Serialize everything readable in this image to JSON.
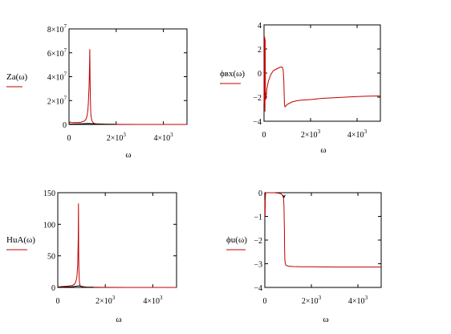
{
  "chart_data": [
    {
      "id": "za",
      "type": "line",
      "ylabel": "Za(ω)",
      "xlabel": "ω",
      "xlim": [
        0,
        5000
      ],
      "ylim": [
        0,
        80000000
      ],
      "yticks": [
        {
          "v": 0,
          "t": "0",
          "s": ""
        },
        {
          "v": 20000000,
          "t": "2×10",
          "s": "7"
        },
        {
          "v": 40000000,
          "t": "4×10",
          "s": "7"
        },
        {
          "v": 60000000,
          "t": "6×10",
          "s": "7"
        },
        {
          "v": 80000000,
          "t": "8×10",
          "s": "7"
        }
      ],
      "xticks": [
        {
          "v": 0,
          "t": "0",
          "s": ""
        },
        {
          "v": 2000,
          "t": "2×10",
          "s": "3"
        },
        {
          "v": 4000,
          "t": "4×10",
          "s": "3"
        }
      ],
      "series": [
        {
          "color": "#c00000",
          "x": [
            0,
            50,
            100,
            200,
            300,
            400,
            500,
            600,
            650,
            700,
            720,
            750,
            780,
            800,
            820,
            850,
            860,
            870,
            880,
            890,
            900,
            910,
            920,
            930,
            950,
            980,
            1000,
            1050,
            1100,
            1200,
            1300,
            1500,
            2000,
            3000,
            4000,
            5000
          ],
          "y": [
            1000000,
            2000000,
            1700000,
            1600000,
            1600000,
            1700000,
            1900000,
            2400000,
            2900000,
            3800000,
            4500000,
            6000000,
            9000000,
            12000000,
            18000000,
            32000000,
            40000000,
            50000000,
            63000000,
            40000000,
            27000000,
            18000000,
            12000000,
            8000000,
            5000000,
            3000000,
            2000000,
            1000000,
            600000,
            300000,
            200000,
            100000,
            50000,
            20000,
            10000,
            5000
          ]
        },
        {
          "color": "#000000",
          "x": [
            0,
            200,
            400,
            600,
            800,
            1000,
            1500,
            2000
          ],
          "y": [
            300000,
            400000,
            500000,
            600000,
            800000,
            600000,
            300000,
            100000
          ]
        }
      ]
    },
    {
      "id": "phi_bx",
      "type": "line",
      "ylabel": "ϕвх(ω)",
      "xlabel": "ω",
      "xlim": [
        0,
        5000
      ],
      "ylim": [
        -4,
        4
      ],
      "yticks": [
        {
          "v": -4,
          "t": "−4",
          "s": ""
        },
        {
          "v": -2,
          "t": "−2",
          "s": ""
        },
        {
          "v": 0,
          "t": "0",
          "s": ""
        },
        {
          "v": 2,
          "t": "2",
          "s": ""
        },
        {
          "v": 4,
          "t": "4",
          "s": ""
        }
      ],
      "xticks": [
        {
          "v": 0,
          "t": "0",
          "s": ""
        },
        {
          "v": 2000,
          "t": "2×10",
          "s": "3"
        },
        {
          "v": 4000,
          "t": "4×10",
          "s": "3"
        }
      ],
      "series": [
        {
          "color": "#c00000",
          "x": [
            0,
            10,
            20,
            30,
            40,
            50,
            60,
            70,
            80,
            100,
            120,
            150,
            200,
            300,
            400,
            500,
            600,
            700,
            780,
            820,
            850,
            870,
            880,
            900,
            950,
            1000,
            1100,
            1200,
            1400,
            1600,
            2000,
            2500,
            3000,
            3500,
            4000,
            4500,
            5000
          ],
          "y": [
            -2.5,
            3.1,
            -2.8,
            3.0,
            -3.2,
            2.8,
            -2.0,
            -1.6,
            -2.2,
            -1.8,
            -1.3,
            -1.0,
            -0.6,
            -0.1,
            0.2,
            0.3,
            0.4,
            0.5,
            0.5,
            0.3,
            -0.5,
            -2.0,
            -2.6,
            -2.8,
            -2.7,
            -2.6,
            -2.5,
            -2.4,
            -2.3,
            -2.25,
            -2.2,
            -2.1,
            -2.05,
            -2.0,
            -1.95,
            -1.92,
            -1.9
          ]
        }
      ]
    },
    {
      "id": "hua",
      "type": "line",
      "ylabel": "HuA(ω)",
      "xlabel": "ω",
      "xlim": [
        0,
        5000
      ],
      "ylim": [
        0,
        150
      ],
      "yticks": [
        {
          "v": 0,
          "t": "0",
          "s": ""
        },
        {
          "v": 50,
          "t": "50",
          "s": ""
        },
        {
          "v": 100,
          "t": "100",
          "s": ""
        },
        {
          "v": 150,
          "t": "150",
          "s": ""
        }
      ],
      "xticks": [
        {
          "v": 0,
          "t": "0",
          "s": ""
        },
        {
          "v": 2000,
          "t": "2×10",
          "s": "3"
        },
        {
          "v": 4000,
          "t": "4×10",
          "s": "3"
        }
      ],
      "series": [
        {
          "color": "#c00000",
          "x": [
            0,
            100,
            200,
            400,
            600,
            700,
            750,
            800,
            820,
            840,
            860,
            870,
            880,
            890,
            900,
            910,
            920,
            940,
            960,
            1000,
            1100,
            1300,
            1600,
            2000,
            3000,
            4000,
            5000
          ],
          "y": [
            1,
            1.2,
            1.5,
            2,
            3,
            5,
            8,
            15,
            25,
            37,
            80,
            133,
            60,
            30,
            18,
            10,
            6,
            3,
            2,
            1,
            0.5,
            0.3,
            0.2,
            0.1,
            0.05,
            0.03,
            0.02
          ]
        },
        {
          "color": "#000000",
          "x": [
            0,
            200,
            400,
            600,
            800,
            900,
            1000,
            1200,
            1500
          ],
          "y": [
            0.3,
            0.5,
            0.8,
            1.2,
            2,
            2.5,
            1.5,
            0.5,
            0.2
          ]
        }
      ]
    },
    {
      "id": "phi_u",
      "type": "line",
      "ylabel": "ϕu(ω)",
      "xlabel": "ω",
      "xlim": [
        0,
        5000
      ],
      "ylim": [
        -4,
        0
      ],
      "yticks": [
        {
          "v": -4,
          "t": "−4",
          "s": ""
        },
        {
          "v": -3,
          "t": "−3",
          "s": ""
        },
        {
          "v": -2,
          "t": "−2",
          "s": ""
        },
        {
          "v": -1,
          "t": "−1",
          "s": ""
        },
        {
          "v": 0,
          "t": "0",
          "s": ""
        }
      ],
      "xticks": [
        {
          "v": 0,
          "t": "0",
          "s": ""
        },
        {
          "v": 2000,
          "t": "2×10",
          "s": "3"
        },
        {
          "v": 4000,
          "t": "4×10",
          "s": "3"
        }
      ],
      "series": [
        {
          "color": "#c00000",
          "x": [
            0,
            10,
            20,
            30,
            40,
            60,
            100,
            200,
            400,
            600,
            700,
            750,
            800,
            820,
            830,
            840,
            850,
            860,
            880,
            900,
            950,
            1000,
            1200,
            1600,
            2000,
            3000,
            4000,
            5000
          ],
          "y": [
            -0.3,
            -1.0,
            -0.3,
            -0.05,
            0,
            0,
            0,
            0,
            0,
            -0.02,
            -0.05,
            -0.1,
            -0.2,
            -0.5,
            -1.0,
            -1.6,
            -2.3,
            -2.8,
            -3.0,
            -3.05,
            -3.08,
            -3.1,
            -3.12,
            -3.13,
            -3.13,
            -3.14,
            -3.14,
            -3.14
          ]
        },
        {
          "color": "#000000",
          "x": [
            780,
            800,
            820,
            840,
            860,
            880
          ],
          "y": [
            -0.1,
            -0.15,
            -0.2,
            -0.18,
            -0.12,
            -0.1
          ]
        }
      ]
    }
  ]
}
